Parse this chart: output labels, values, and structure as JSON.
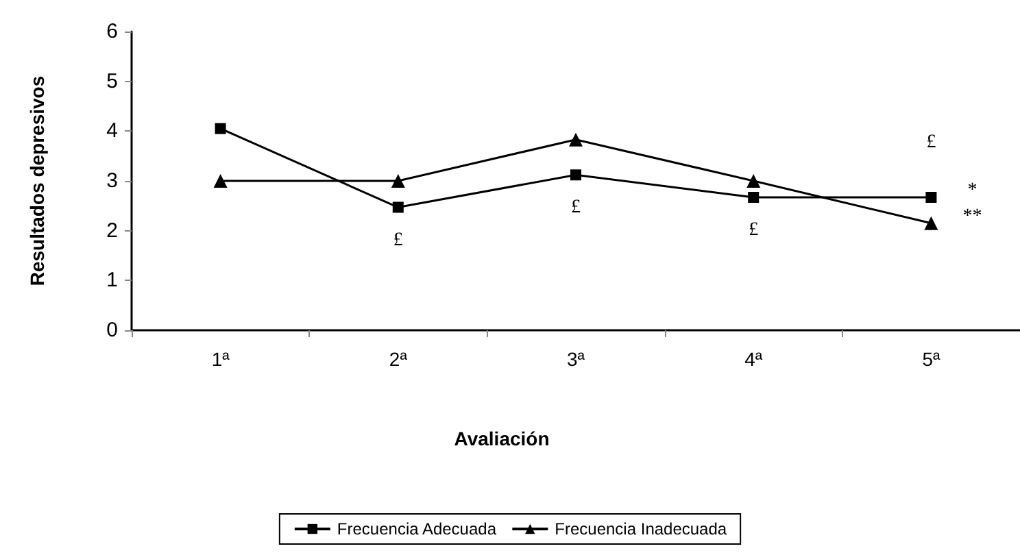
{
  "chart_data": {
    "type": "line",
    "xlabel": "Avaliación",
    "ylabel": "Resultados depresivos",
    "categories": [
      "1ª",
      "2ª",
      "3ª",
      "4ª",
      "5ª"
    ],
    "series": [
      {
        "name": "Frecuencia Adecuada",
        "color": "#000000",
        "marker": "square",
        "values": [
          4.05,
          2.47,
          3.12,
          2.67,
          2.67
        ]
      },
      {
        "name": "Frecuencia Inadecuada",
        "color": "#000000",
        "marker": "triangle",
        "values": [
          3.0,
          3.0,
          3.83,
          3.0,
          2.15
        ]
      }
    ],
    "ylim": [
      0,
      6
    ],
    "yticks": [
      0,
      1,
      2,
      3,
      4,
      5,
      6
    ],
    "grid": false,
    "legend": "bottom",
    "annotations": [
      {
        "text": "£",
        "x": "2ª",
        "y": 2.47
      },
      {
        "text": "£",
        "x": "3ª",
        "y": 3.12
      },
      {
        "text": "£",
        "x": "4ª",
        "y": 2.67
      },
      {
        "text": "£",
        "x": "5ª",
        "y": 2.67
      },
      "*",
      "**"
    ]
  }
}
